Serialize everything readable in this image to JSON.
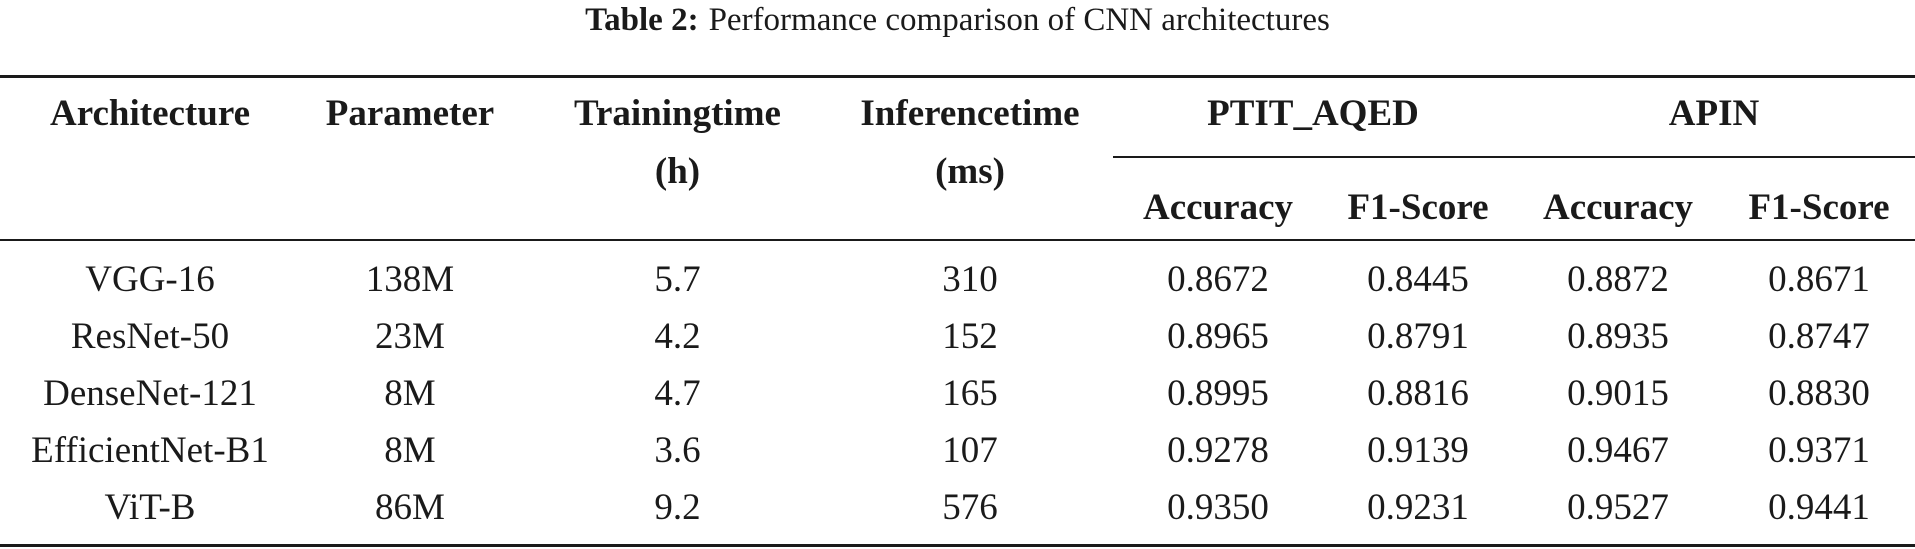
{
  "table": {
    "caption_label": "Table 2:",
    "caption_text": "Performance comparison of CNN architectures",
    "headers": {
      "architecture": "Architecture",
      "parameter": "Parameter",
      "training_time": [
        "Trainingtime",
        "(h)"
      ],
      "inference_time": [
        "Inferencetime",
        "(ms)"
      ],
      "group_1": "PTIT_AQED",
      "group_2": "APIN",
      "sub": [
        "Accuracy",
        "F1-Score",
        "Accuracy",
        "F1-Score"
      ]
    },
    "rows": [
      [
        "VGG-16",
        "138M",
        "5.7",
        "310",
        "0.8672",
        "0.8445",
        "0.8872",
        "0.8671"
      ],
      [
        "ResNet-50",
        "23M",
        "4.2",
        "152",
        "0.8965",
        "0.8791",
        "0.8935",
        "0.8747"
      ],
      [
        "DenseNet-121",
        "8M",
        "4.7",
        "165",
        "0.8995",
        "0.8816",
        "0.9015",
        "0.8830"
      ],
      [
        "EfficientNet-B1",
        "8M",
        "3.6",
        "107",
        "0.9278",
        "0.9139",
        "0.9467",
        "0.9371"
      ],
      [
        "ViT-B",
        "86M",
        "9.2",
        "576",
        "0.9350",
        "0.9231",
        "0.9527",
        "0.9441"
      ]
    ]
  }
}
